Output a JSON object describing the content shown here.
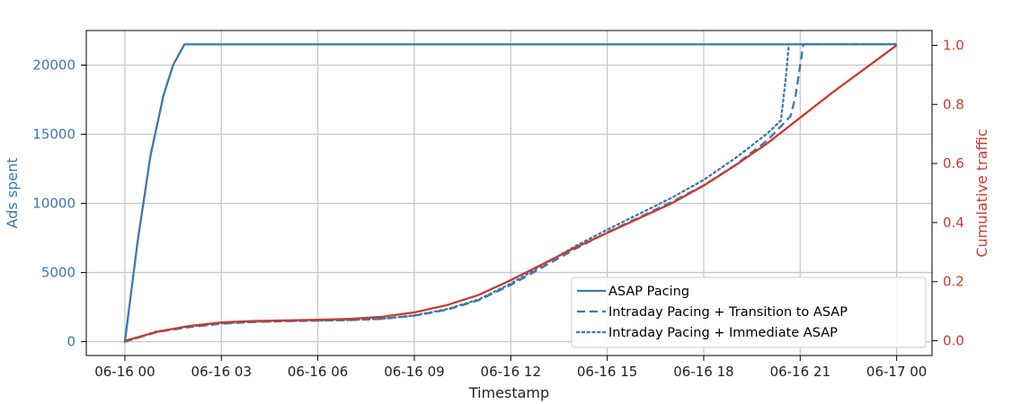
{
  "chart_data": {
    "type": "line",
    "xlabel": "Timestamp",
    "ylabel_left": "Ads spent",
    "ylabel_right": "Cumulative traffic",
    "x_ticks": [
      "06-16 00",
      "06-16 03",
      "06-16 06",
      "06-16 09",
      "06-16 12",
      "06-16 15",
      "06-16 18",
      "06-16 21",
      "06-17 00"
    ],
    "xlim_hours": [
      -1.2,
      25.1
    ],
    "ylim_left": [
      -1000,
      22500
    ],
    "ylim_right": [
      -0.05,
      1.05
    ],
    "y_ticks_left": [
      "0",
      "5000",
      "10000",
      "15000",
      "20000"
    ],
    "y_ticks_right": [
      "0.0",
      "0.2",
      "0.4",
      "0.6",
      "0.8",
      "1.0"
    ],
    "grid": true,
    "legend_position": "lower-right",
    "colors": {
      "left_axis": "#3b78b0",
      "right_axis": "#cc3a2e",
      "series": "#3b78b0",
      "traffic": "#cc3a2e",
      "grid": "#c8c8c8"
    },
    "series": [
      {
        "name": "ASAP Pacing",
        "axis": "left",
        "style": "solid",
        "points": [
          [
            0,
            0
          ],
          [
            0.4,
            7300
          ],
          [
            0.8,
            13500
          ],
          [
            1.2,
            17800
          ],
          [
            1.5,
            20000
          ],
          [
            1.85,
            21500
          ],
          [
            24,
            21500
          ]
        ]
      },
      {
        "name": "Intraday Pacing + Transition to ASAP",
        "axis": "left",
        "style": "dashed",
        "points": [
          [
            0,
            0
          ],
          [
            1,
            700
          ],
          [
            2,
            1050
          ],
          [
            3,
            1300
          ],
          [
            4,
            1420
          ],
          [
            5,
            1480
          ],
          [
            6,
            1520
          ],
          [
            7,
            1560
          ],
          [
            8,
            1650
          ],
          [
            9,
            1880
          ],
          [
            10,
            2300
          ],
          [
            11,
            3000
          ],
          [
            12,
            4100
          ],
          [
            13,
            5400
          ],
          [
            14,
            6700
          ],
          [
            15,
            7900
          ],
          [
            16,
            9000
          ],
          [
            17,
            10100
          ],
          [
            18,
            11300
          ],
          [
            19,
            12800
          ],
          [
            20,
            14600
          ],
          [
            20.7,
            16300
          ],
          [
            20.85,
            17700
          ],
          [
            21.1,
            21500
          ],
          [
            24,
            21500
          ]
        ]
      },
      {
        "name": "Intraday Pacing + Immediate ASAP",
        "axis": "left",
        "style": "dotted",
        "points": [
          [
            0,
            0
          ],
          [
            1,
            750
          ],
          [
            2,
            1100
          ],
          [
            3,
            1330
          ],
          [
            4,
            1440
          ],
          [
            5,
            1500
          ],
          [
            6,
            1530
          ],
          [
            7,
            1570
          ],
          [
            8,
            1660
          ],
          [
            9,
            1900
          ],
          [
            10,
            2350
          ],
          [
            11,
            3050
          ],
          [
            12,
            4200
          ],
          [
            13,
            5550
          ],
          [
            14,
            6900
          ],
          [
            15,
            8100
          ],
          [
            16,
            9250
          ],
          [
            17,
            10400
          ],
          [
            18,
            11700
          ],
          [
            19,
            13300
          ],
          [
            20,
            15100
          ],
          [
            20.4,
            16000
          ],
          [
            20.55,
            19000
          ],
          [
            20.65,
            21500
          ],
          [
            24,
            21500
          ]
        ]
      },
      {
        "name": "Cumulative traffic",
        "axis": "right",
        "style": "solid-traffic",
        "points": [
          [
            0,
            0
          ],
          [
            1,
            0.03
          ],
          [
            2,
            0.05
          ],
          [
            3,
            0.062
          ],
          [
            4,
            0.067
          ],
          [
            5,
            0.069
          ],
          [
            6,
            0.071
          ],
          [
            7,
            0.074
          ],
          [
            8,
            0.081
          ],
          [
            9,
            0.096
          ],
          [
            10,
            0.12
          ],
          [
            11,
            0.155
          ],
          [
            12,
            0.205
          ],
          [
            13,
            0.26
          ],
          [
            14,
            0.315
          ],
          [
            15,
            0.365
          ],
          [
            16,
            0.415
          ],
          [
            17,
            0.465
          ],
          [
            18,
            0.525
          ],
          [
            19,
            0.595
          ],
          [
            20,
            0.67
          ],
          [
            21,
            0.755
          ],
          [
            22,
            0.84
          ],
          [
            23,
            0.92
          ],
          [
            24,
            1.0
          ]
        ]
      }
    ]
  }
}
